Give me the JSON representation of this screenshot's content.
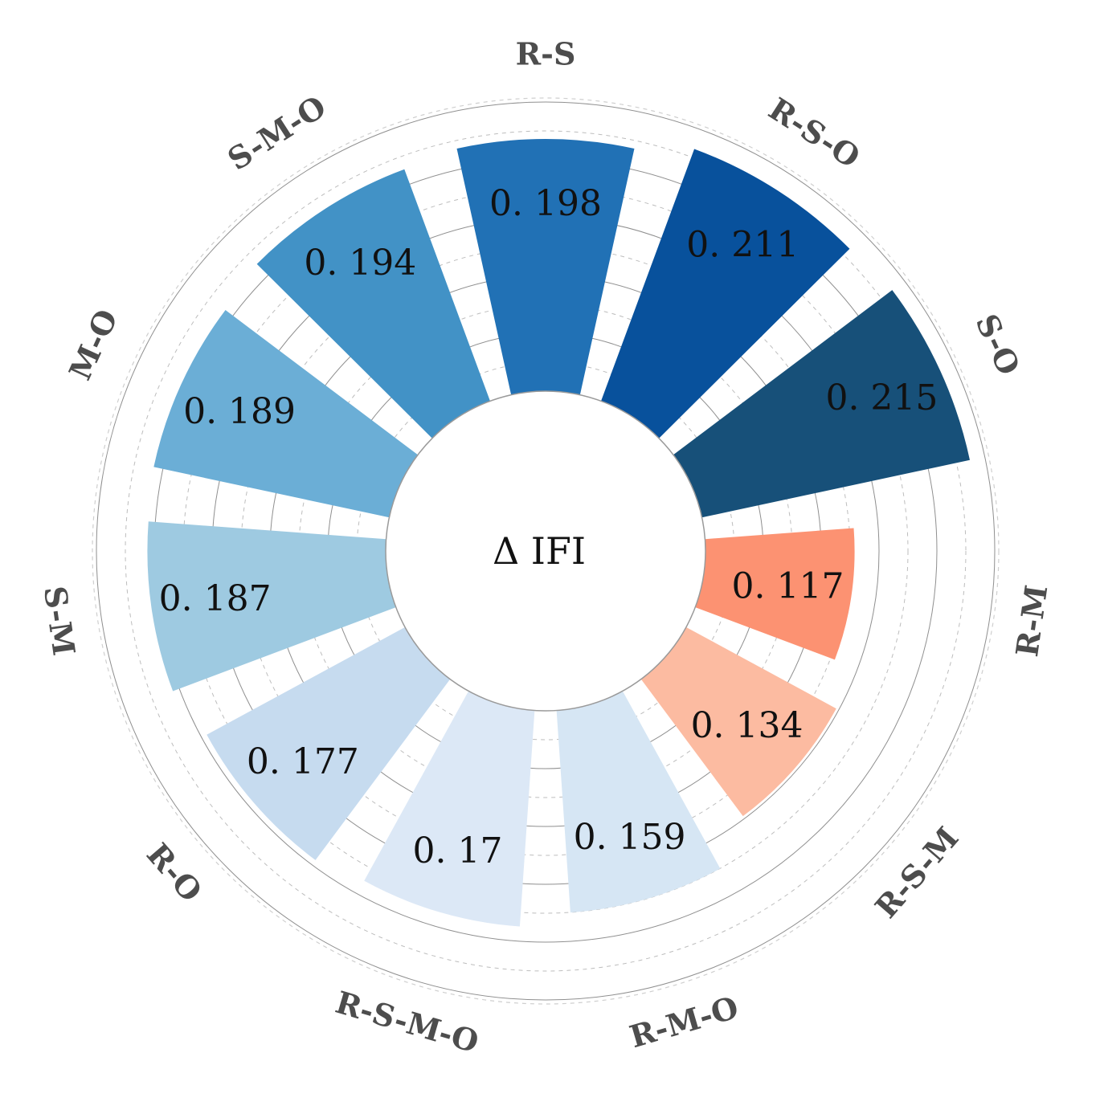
{
  "chart_data": {
    "type": "bar",
    "subtype": "polar-bar",
    "center_label": "Δ IFI",
    "categories": [
      "R-S",
      "R-S-O",
      "S-O",
      "R-M",
      "R-S-M",
      "R-M-O",
      "R-S-M-O",
      "R-O",
      "S-M",
      "M-O",
      "S-M-O"
    ],
    "values": [
      0.198,
      0.211,
      0.215,
      0.117,
      0.134,
      0.159,
      0.17,
      0.177,
      0.187,
      0.189,
      0.194
    ],
    "value_labels": [
      "0. 198",
      "0. 211",
      "0. 215",
      "0. 117",
      "0. 134",
      "0. 159",
      "0. 17",
      "0. 177",
      "0. 187",
      "0. 189",
      "0. 194"
    ],
    "colors": [
      "#2171b5",
      "#08519c",
      "#175079",
      "#fc9272",
      "#fcbba1",
      "#d6e6f4",
      "#dce8f6",
      "#c6dbef",
      "#9ecae1",
      "#6baed6",
      "#4292c6"
    ],
    "ylim": [
      0,
      0.215
    ],
    "grid": true,
    "legend": "none"
  }
}
